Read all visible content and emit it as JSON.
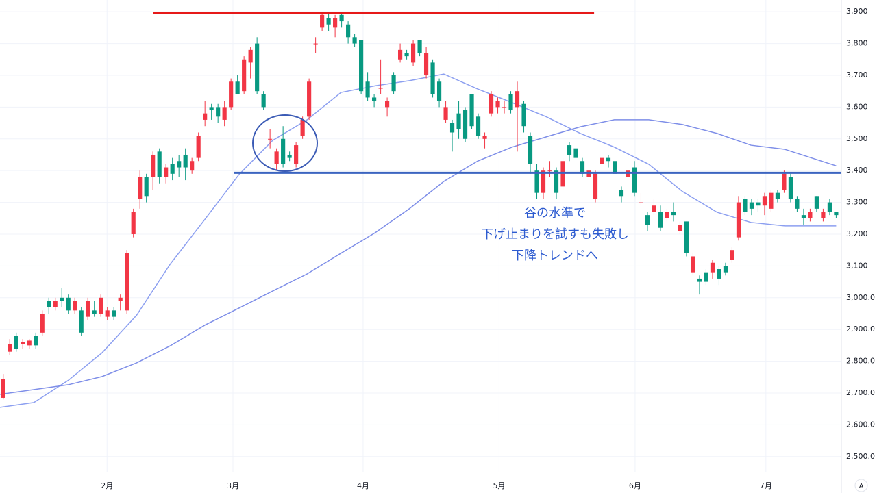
{
  "chart_data": {
    "type": "candlestick",
    "open": [
      2685,
      2830,
      2880,
      2855,
      2850,
      2880,
      2890,
      2990,
      2970,
      3000,
      3000,
      2960,
      2960,
      2940,
      2960,
      2950,
      2940,
      2960,
      2990,
      2960,
      3200,
      3310,
      3380,
      3380,
      3460,
      3380,
      3420,
      3430,
      3450,
      3400,
      3440,
      3560,
      3600,
      3600,
      3560,
      3600,
      3680,
      3650,
      3740,
      3800,
      3640,
      3500,
      3420,
      3500,
      3450,
      3420,
      3510,
      3570,
      3800,
      3850,
      3880,
      3850,
      3890,
      3860,
      3820,
      3810,
      3680,
      3630,
      3660,
      3600,
      3700,
      3750,
      3770,
      3740,
      3810,
      3700,
      3740,
      3680,
      3560,
      3550,
      3580,
      3590,
      3640,
      3570,
      3500,
      3580,
      3600,
      3600,
      3640,
      3600,
      3610,
      3510,
      3400,
      3330,
      3400,
      3400,
      3350,
      3480,
      3470,
      3430,
      3380,
      3310,
      3420,
      3440,
      3430,
      3340,
      3380,
      3410,
      3300,
      3260,
      3270,
      3270,
      3250,
      3270,
      3210,
      3240,
      3080,
      3060,
      3080,
      3080,
      3090,
      3100,
      3120,
      3190,
      3310,
      3300,
      3300,
      3290,
      3280,
      3330,
      3340,
      3380,
      3310,
      3260,
      3250,
      3320,
      3250,
      3300,
      3270
    ],
    "high": [
      2760,
      2870,
      2890,
      2870,
      2870,
      2890,
      2960,
      3000,
      3000,
      3030,
      3010,
      3000,
      2970,
      3000,
      2990,
      3010,
      2970,
      2970,
      3010,
      3150,
      3280,
      3400,
      3390,
      3460,
      3470,
      3420,
      3440,
      3450,
      3470,
      3440,
      3520,
      3620,
      3610,
      3610,
      3620,
      3690,
      3700,
      3760,
      3790,
      3820,
      3650,
      3530,
      3470,
      3540,
      3460,
      3490,
      3570,
      3690,
      3820,
      3900,
      3900,
      3890,
      3900,
      3870,
      3830,
      3810,
      3710,
      3640,
      3750,
      3630,
      3710,
      3800,
      3780,
      3810,
      3810,
      3790,
      3750,
      3690,
      3620,
      3560,
      3620,
      3600,
      3640,
      3580,
      3520,
      3650,
      3630,
      3620,
      3650,
      3680,
      3620,
      3520,
      3420,
      3410,
      3430,
      3410,
      3440,
      3490,
      3480,
      3440,
      3410,
      3400,
      3450,
      3450,
      3440,
      3350,
      3410,
      3430,
      3330,
      3270,
      3310,
      3290,
      3280,
      3300,
      3240,
      3240,
      3140,
      3070,
      3090,
      3120,
      3100,
      3110,
      3160,
      3320,
      3320,
      3310,
      3310,
      3330,
      3340,
      3340,
      3400,
      3390,
      3320,
      3280,
      3280,
      3320,
      3280,
      3310,
      3270
    ],
    "low": [
      2680,
      2820,
      2830,
      2840,
      2840,
      2840,
      2880,
      2950,
      2960,
      2970,
      2950,
      2950,
      2880,
      2930,
      2940,
      2940,
      2930,
      2930,
      2960,
      2950,
      3190,
      3280,
      3300,
      3340,
      3360,
      3360,
      3370,
      3380,
      3370,
      3390,
      3430,
      3540,
      3560,
      3550,
      3540,
      3590,
      3640,
      3640,
      3690,
      3640,
      3590,
      3470,
      3400,
      3410,
      3430,
      3410,
      3500,
      3560,
      3770,
      3840,
      3840,
      3820,
      3850,
      3800,
      3790,
      3640,
      3620,
      3600,
      3640,
      3570,
      3640,
      3740,
      3750,
      3730,
      3760,
      3690,
      3630,
      3600,
      3550,
      3460,
      3500,
      3490,
      3530,
      3500,
      3470,
      3570,
      3580,
      3580,
      3580,
      3460,
      3520,
      3390,
      3310,
      3310,
      3380,
      3310,
      3340,
      3430,
      3430,
      3380,
      3370,
      3300,
      3410,
      3410,
      3380,
      3300,
      3370,
      3320,
      3290,
      3210,
      3260,
      3210,
      3240,
      3240,
      3200,
      3130,
      3070,
      3010,
      3040,
      3060,
      3040,
      3070,
      3110,
      3180,
      3260,
      3260,
      3270,
      3260,
      3270,
      3300,
      3330,
      3300,
      3270,
      3230,
      3240,
      3270,
      3240,
      3260,
      3250
    ],
    "close": [
      2745,
      2855,
      2840,
      2860,
      2865,
      2850,
      2950,
      2970,
      2990,
      2990,
      2960,
      2990,
      2890,
      2990,
      2950,
      3000,
      2960,
      2940,
      3000,
      3140,
      3270,
      3380,
      3320,
      3450,
      3380,
      3410,
      3390,
      3410,
      3410,
      3430,
      3510,
      3580,
      3590,
      3570,
      3600,
      3680,
      3640,
      3750,
      3780,
      3650,
      3600,
      3500,
      3460,
      3420,
      3440,
      3480,
      3560,
      3680,
      3800,
      3890,
      3860,
      3880,
      3870,
      3820,
      3800,
      3650,
      3630,
      3620,
      3660,
      3620,
      3650,
      3780,
      3760,
      3800,
      3770,
      3770,
      3640,
      3620,
      3600,
      3520,
      3530,
      3500,
      3540,
      3510,
      3510,
      3640,
      3620,
      3600,
      3590,
      3650,
      3540,
      3420,
      3330,
      3400,
      3400,
      3330,
      3430,
      3450,
      3440,
      3390,
      3400,
      3390,
      3440,
      3430,
      3390,
      3320,
      3400,
      3330,
      3300,
      3230,
      3290,
      3220,
      3270,
      3260,
      3230,
      3140,
      3130,
      3050,
      3050,
      3110,
      3060,
      3080,
      3150,
      3300,
      3270,
      3280,
      3290,
      3320,
      3330,
      3310,
      3390,
      3310,
      3280,
      3250,
      3270,
      3280,
      3270,
      3270,
      3260
    ],
    "up_color": "#f23645",
    "down_color": "#089981",
    "moving_averages": [
      {
        "color": "#8c9ff0",
        "x": [
          -0.5,
          4.7,
          10,
          15.2,
          20.5,
          25.7,
          31,
          36.2,
          41.4,
          46.7,
          51.9,
          57.2,
          62.4,
          67.7,
          72.9,
          78.2,
          83.4,
          88.7,
          93.9,
          99.2,
          104.4,
          109.7,
          114.9,
          120.1,
          128
        ],
        "values": [
          2655,
          2670,
          2740,
          2827,
          2945,
          3107,
          3247,
          3387,
          3495,
          3560,
          3646,
          3667,
          3683,
          3704,
          3657,
          3614,
          3570,
          3517,
          3474,
          3420,
          3334,
          3269,
          3237,
          3226,
          3226
        ]
      },
      {
        "color": "#7e8ee8",
        "x": [
          -0.5,
          10,
          15.2,
          20.5,
          25.7,
          31,
          36.2,
          41.4,
          46.7,
          51.9,
          57.2,
          62.4,
          67.7,
          72.9,
          78.2,
          83.4,
          88.7,
          93.9,
          99.2,
          104.4,
          109.7,
          114.9,
          120.1,
          128
        ],
        "values": [
          2696,
          2726,
          2752,
          2795,
          2849,
          2914,
          2967,
          3021,
          3075,
          3140,
          3205,
          3280,
          3366,
          3430,
          3474,
          3506,
          3538,
          3560,
          3560,
          3545,
          3517,
          3480,
          3467,
          3415
        ]
      }
    ],
    "levels": [
      {
        "value": 3895,
        "x": [
          23,
          90.8
        ],
        "color": "#e61919"
      },
      {
        "value": 3393,
        "x": [
          35.5,
          128.8
        ],
        "color": "#3b64c0"
      }
    ],
    "annotation": [
      "谷の水準で",
      "下げ止まりを試すも失敗し",
      "下降トレンドへ"
    ],
    "xlim": [
      -0.5,
      128.8
    ],
    "ylim": [
      2450,
      3937
    ],
    "yticks": [
      {
        "value": 2500,
        "label": "2,500.0"
      },
      {
        "value": 2600,
        "label": "2,600.0"
      },
      {
        "value": 2700,
        "label": "2,700.0"
      },
      {
        "value": 2800,
        "label": "2,800.0"
      },
      {
        "value": 2900,
        "label": "2,900.0"
      },
      {
        "value": 3000,
        "label": "3,000.0"
      },
      {
        "value": 3100,
        "label": "3,100"
      },
      {
        "value": 3200,
        "label": "3,200"
      },
      {
        "value": 3300,
        "label": "3,300"
      },
      {
        "value": 3400,
        "label": "3,400"
      },
      {
        "value": 3500,
        "label": "3,500"
      },
      {
        "value": 3600,
        "label": "3,600"
      },
      {
        "value": 3700,
        "label": "3,700"
      },
      {
        "value": 3800,
        "label": "3,800"
      },
      {
        "value": 3900,
        "label": "3,900"
      }
    ],
    "xticks": [
      {
        "value": 15.95,
        "label": "2月"
      },
      {
        "value": 35.3,
        "label": "3月"
      },
      {
        "value": 55.3,
        "label": "4月"
      },
      {
        "value": 76.2,
        "label": "5月"
      },
      {
        "value": 97.1,
        "label": "6月"
      },
      {
        "value": 117.2,
        "label": "7月"
      }
    ],
    "grid": true,
    "scale_button": "A"
  }
}
